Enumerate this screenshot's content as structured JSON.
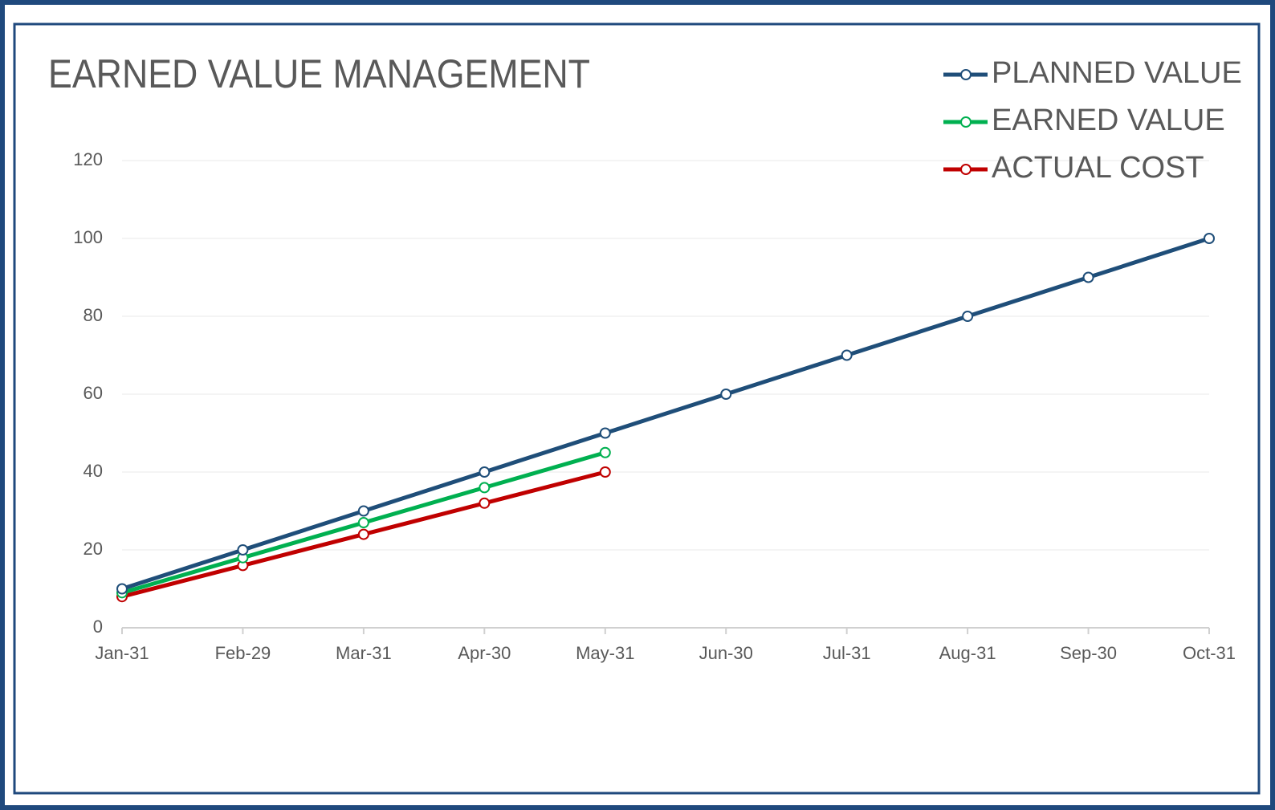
{
  "chart_data": {
    "type": "line",
    "title": "EARNED VALUE MANAGEMENT",
    "categories": [
      "Jan-31",
      "Feb-29",
      "Mar-31",
      "Apr-30",
      "May-31",
      "Jun-30",
      "Jul-31",
      "Aug-31",
      "Sep-30",
      "Oct-31"
    ],
    "series": [
      {
        "name": "PLANNED VALUE",
        "color": "#1f4e79",
        "values": [
          10,
          20,
          30,
          40,
          50,
          60,
          70,
          80,
          90,
          100
        ]
      },
      {
        "name": "EARNED VALUE",
        "color": "#00b050",
        "values": [
          9,
          18,
          27,
          36,
          45,
          null,
          null,
          null,
          null,
          null
        ]
      },
      {
        "name": "ACTUAL COST",
        "color": "#c00000",
        "values": [
          8,
          16,
          24,
          32,
          40,
          null,
          null,
          null,
          null,
          null
        ]
      }
    ],
    "ylim": [
      0,
      120
    ],
    "yticks": [
      0,
      20,
      40,
      60,
      80,
      100,
      120
    ],
    "grid": true,
    "legend": "top-right"
  }
}
